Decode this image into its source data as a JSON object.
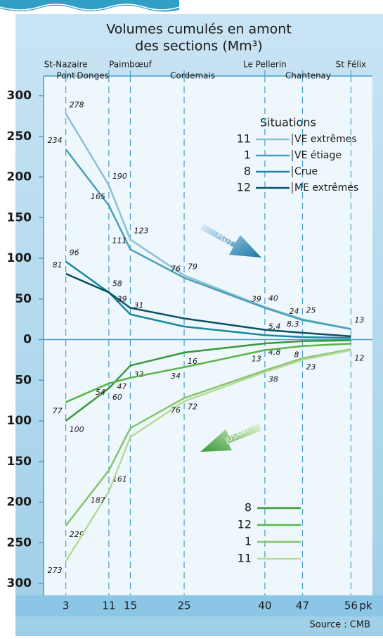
{
  "chart_data": {
    "type": "line",
    "title_lines": [
      "Volumes cumulés en amont",
      "des sections (Mm³)"
    ],
    "places": [
      [
        "St-Nazaire",
        "Pont"
      ],
      [
        "Donges"
      ],
      [
        "Paimbœuf"
      ],
      [
        "Cordemais"
      ],
      [
        "Le Pellerin"
      ],
      [
        "Chantenay"
      ],
      [
        "St Félix"
      ]
    ],
    "x": [
      3,
      11,
      15,
      25,
      40,
      47,
      56
    ],
    "xlim": [
      -1,
      60
    ],
    "xticks": [
      3,
      11,
      15,
      25,
      40,
      47,
      56
    ],
    "x_unit": "pk",
    "ylim": [
      -300,
      300
    ],
    "yticks": [
      300,
      250,
      200,
      150,
      100,
      50,
      0,
      {
        "value": -50,
        "label": "50"
      },
      {
        "value": -100,
        "label": "100"
      },
      {
        "value": -150,
        "label": "150"
      },
      {
        "value": -200,
        "label": "200"
      },
      {
        "value": -250,
        "label": "250"
      },
      {
        "value": -300,
        "label": "300"
      }
    ],
    "legend_title": "Situations",
    "flow_labels": [
      "FLOT",
      "JUSANT"
    ],
    "series": [
      {
        "number": "11",
        "name": "VE extrêmes",
        "color": "#8cc0d2",
        "values": [
          278,
          190,
          123,
          79,
          40,
          25,
          13
        ],
        "value_labels": [
          "278",
          "190",
          "123",
          "79",
          "40",
          "25",
          "13"
        ]
      },
      {
        "number": "1",
        "name": "VE étiage",
        "color": "#4a9fb8",
        "values": [
          234,
          165,
          111,
          76,
          39,
          24,
          13
        ],
        "value_labels": [
          "234",
          "165",
          "111",
          "76",
          "39",
          "24",
          null
        ]
      },
      {
        "number": "8",
        "name": "Crue",
        "color": "#17899a",
        "values": [
          96,
          58,
          31,
          16,
          5.4,
          3,
          2
        ],
        "value_labels": [
          "96",
          "58",
          "31",
          null,
          "5,4",
          null,
          null
        ]
      },
      {
        "number": "12",
        "name": "ME extrêmes",
        "color": "#0b5064",
        "values": [
          81,
          58,
          39,
          26,
          12,
          8.3,
          4
        ],
        "value_labels": [
          "81",
          null,
          "39",
          null,
          null,
          "8,3",
          null
        ]
      },
      {
        "name": "8",
        "color": "#3a983c",
        "values": [
          -100,
          -60,
          -32,
          -16,
          -4.8,
          -2,
          -1
        ],
        "value_labels": [
          "100",
          "60",
          "32",
          "16",
          "4,8",
          null,
          null
        ]
      },
      {
        "name": "12",
        "color": "#58b548",
        "values": [
          -77,
          -54,
          -47,
          -34,
          -13,
          -8,
          -5
        ],
        "value_labels": [
          "77",
          "54",
          "47",
          "34",
          "13",
          "8",
          null
        ]
      },
      {
        "name": "1",
        "color": "#86c46c",
        "values": [
          -229,
          -161,
          -109,
          -72,
          -38,
          -23,
          -12
        ],
        "value_labels": [
          "229",
          "161",
          null,
          "72",
          "38",
          "23",
          "12"
        ]
      },
      {
        "name": "11",
        "color": "#b6da98",
        "values": [
          -273,
          -187,
          -120,
          -76,
          -40,
          -25,
          -13
        ],
        "value_labels": [
          "273",
          "187",
          null,
          "76",
          null,
          null,
          null
        ]
      }
    ],
    "source": "Source : CMB"
  }
}
